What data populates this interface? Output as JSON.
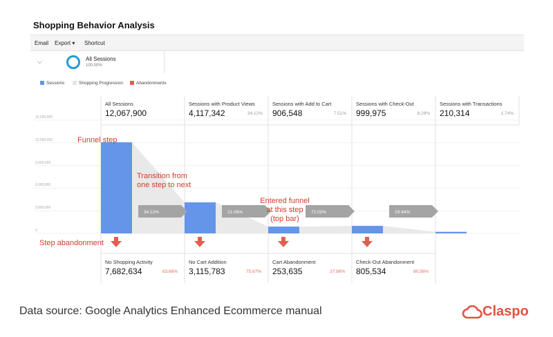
{
  "report": {
    "title": "Shopping Behavior Analysis",
    "toolbar": [
      "Email",
      "Export ▾",
      "Shortcut"
    ],
    "segment": {
      "name": "All Sessions",
      "pct": "100.00%"
    }
  },
  "legend": [
    {
      "label": "Sessions",
      "color": "#6495e8"
    },
    {
      "label": "Shopping Progression",
      "color": "#e4e4e4"
    },
    {
      "label": "Abandonments",
      "color": "#e06050"
    }
  ],
  "chart_data": {
    "type": "bar",
    "y_ticks": [
      "15,000,000",
      "12,000,000",
      "9,000,000",
      "6,000,000",
      "3,000,000",
      "0"
    ],
    "ylim": [
      0,
      15000000
    ],
    "steps": [
      {
        "label": "All Sessions",
        "value_text": "12,067,900",
        "pct": "",
        "value": 12067900,
        "transition": "34.12%"
      },
      {
        "label": "Sessions with Product Views",
        "value_text": "4,117,342",
        "pct": "34.12%",
        "value": 4117342,
        "transition": "21.08%"
      },
      {
        "label": "Sessions with Add to Cart",
        "value_text": "906,548",
        "pct": "7.51%",
        "value": 906548,
        "transition": "72.02%"
      },
      {
        "label": "Sessions with Check-Out",
        "value_text": "999,975",
        "pct": "8.29%",
        "value": 999975,
        "transition": "19.44%"
      },
      {
        "label": "Sessions with Transactions",
        "value_text": "210,314",
        "pct": "1.74%",
        "value": 210314,
        "transition": ""
      }
    ],
    "abandonments": [
      {
        "label": "No Shopping Activity",
        "value_text": "7,682,634",
        "pct": "63.66%"
      },
      {
        "label": "No Cart Addition",
        "value_text": "3,115,783",
        "pct": "75.67%"
      },
      {
        "label": "Cart Abandonment",
        "value_text": "253,635",
        "pct": "27.98%"
      },
      {
        "label": "Check-Out Abandonment",
        "value_text": "805,534",
        "pct": "80.56%"
      }
    ]
  },
  "annotations": {
    "funnel_step": "Funnel step",
    "transition": [
      "Transition from",
      "one step to next"
    ],
    "entered": [
      "Entered funnel",
      "at this step",
      "(top bar)"
    ],
    "abandonment": "Step abandonment"
  },
  "footer": {
    "source": "Data source: Google Analytics Enhanced Ecommerce manual",
    "brand": "Claspo",
    "brand_color": "#e5503f"
  }
}
